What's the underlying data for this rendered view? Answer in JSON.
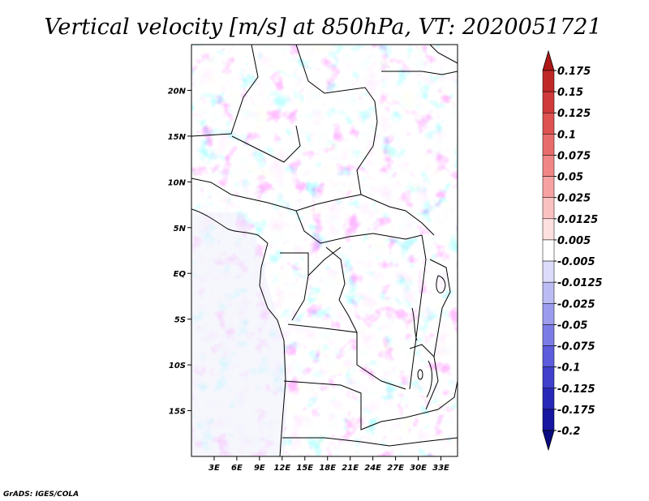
{
  "chart_data": {
    "type": "heatmap",
    "title": "Vertical velocity [m/s] at 850hPa, VT: 2020051721",
    "xlabel": "",
    "ylabel": "",
    "x_ticks": [
      "3E",
      "6E",
      "9E",
      "12E",
      "15E",
      "18E",
      "21E",
      "24E",
      "27E",
      "30E",
      "33E"
    ],
    "x_tick_values": [
      3,
      6,
      9,
      12,
      15,
      18,
      21,
      24,
      27,
      30,
      33
    ],
    "y_ticks": [
      "20N",
      "15N",
      "10N",
      "5N",
      "EQ",
      "5S",
      "10S",
      "15S"
    ],
    "y_tick_values": [
      20,
      15,
      10,
      5,
      0,
      -5,
      -10,
      -15
    ],
    "xlim": [
      0,
      35.2
    ],
    "ylim": [
      -20,
      25
    ],
    "colorbar": {
      "labels": [
        "0.175",
        "0.15",
        "0.125",
        "0.1",
        "0.075",
        "0.05",
        "0.025",
        "0.0125",
        "0.005",
        "-0.005",
        "-0.0125",
        "-0.025",
        "-0.05",
        "-0.075",
        "-0.1",
        "-0.125",
        "-0.175",
        "-0.2"
      ],
      "colors": [
        "#b01818",
        "#c02828",
        "#d03a3a",
        "#de5252",
        "#e86c6c",
        "#f08686",
        "#f6a2a2",
        "#fbc2c2",
        "#fde0e0",
        "#ffffff",
        "#dcdcfa",
        "#bcbcf4",
        "#9c9cee",
        "#7c7ce6",
        "#5c5cdc",
        "#4040cc",
        "#2828b8",
        "#1616a0",
        "#0a0a80"
      ],
      "orientation": "vertical",
      "extend": "both"
    },
    "grid": false
  },
  "credit": "GrADS: IGES/COLA"
}
